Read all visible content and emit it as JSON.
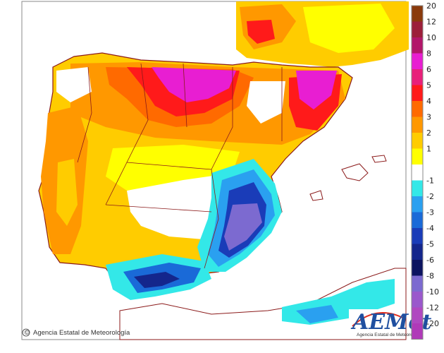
{
  "map": {
    "credit": "Agencia Estatal de Meteorología",
    "credit_symbol": "©",
    "logo": {
      "wordmark": "AEMet",
      "subtitle": "Agencia Estatal de Meteorología",
      "accent_color": "#1f4fa0",
      "swoosh_color": "#e03020"
    }
  },
  "legend": {
    "items": [
      {
        "label": "20",
        "color": "#8a3a0c"
      },
      {
        "label": "12",
        "color": "#9c1f3a"
      },
      {
        "label": "10",
        "color": "#b2166a"
      },
      {
        "label": "8",
        "color": "#e81ed2"
      },
      {
        "label": "6",
        "color": "#e8207a"
      },
      {
        "label": "5",
        "color": "#ff1a1a"
      },
      {
        "label": "4",
        "color": "#ff6a00"
      },
      {
        "label": "3",
        "color": "#ff9800"
      },
      {
        "label": "2",
        "color": "#ffcc00"
      },
      {
        "label": "1",
        "color": "#ffff00"
      },
      {
        "label": "",
        "color": "#ffffff"
      },
      {
        "label": "-1",
        "color": "#33e8e8"
      },
      {
        "label": "-2",
        "color": "#2aa0f0"
      },
      {
        "label": "-3",
        "color": "#1a6ad8"
      },
      {
        "label": "-4",
        "color": "#1a3cb8"
      },
      {
        "label": "-5",
        "color": "#14268c"
      },
      {
        "label": "-6",
        "color": "#0c1460"
      },
      {
        "label": "-8",
        "color": "#7c6ad0"
      },
      {
        "label": "-10",
        "color": "#9a58cc"
      },
      {
        "label": "-12",
        "color": "#b048c0"
      },
      {
        "label": "-20",
        "color": "#b03ab8"
      }
    ]
  },
  "colors": {
    "border": "#8b1a1a",
    "sea": "#ffffff",
    "frame": "#999999"
  }
}
